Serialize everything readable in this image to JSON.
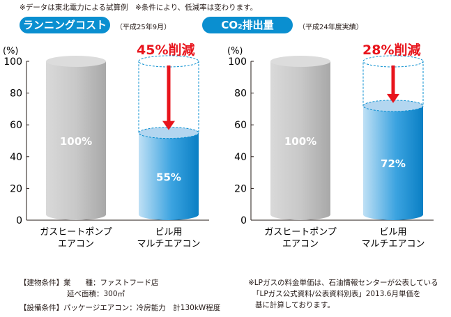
{
  "notes": {
    "top": "※データは東北電力による試算例　※条件により、低減率は変わります。"
  },
  "chart_data": [
    {
      "type": "bar",
      "title": "ランニングコスト",
      "period": "（平成25年9月）",
      "ylabel": "(%)",
      "ylim": [
        0,
        100
      ],
      "yticks": [
        0,
        20,
        40,
        60,
        80,
        100
      ],
      "categories": [
        "ガスヒートポンプ\nエアコン",
        "ビル用\nマルチエアコン"
      ],
      "category_lines": [
        [
          "ガスヒートポンプ",
          "エアコン"
        ],
        [
          "ビル用",
          "マルチエアコン"
        ]
      ],
      "values": [
        100,
        55
      ],
      "value_labels": [
        "100%",
        "55%"
      ],
      "reduction": "45%削減"
    },
    {
      "type": "bar",
      "title": "CO₂排出量",
      "period": "（平成24年度実績）",
      "ylabel": "(%)",
      "ylim": [
        0,
        100
      ],
      "yticks": [
        0,
        20,
        40,
        60,
        80,
        100
      ],
      "categories": [
        "ガスヒートポンプ\nエアコン",
        "ビル用\nマルチエアコン"
      ],
      "category_lines": [
        [
          "ガスヒートポンプ",
          "エアコン"
        ],
        [
          "ビル用",
          "マルチエアコン"
        ]
      ],
      "values": [
        100,
        72
      ],
      "value_labels": [
        "100%",
        "72%"
      ],
      "reduction": "28%削減"
    }
  ],
  "footer": {
    "building1": "【建物条件】業　　種：ファストフード店",
    "building2": "延べ面積：300㎡",
    "equipment": "【設備条件】パッケージエアコン：冷房能力　計130kW程度",
    "lp1": "※LPガスの料金単価は、石油情報センターが公表している",
    "lp2": "「LPガス公式資料/公表資料別表」2013.6月単価を",
    "lp3": "基に計算しております。"
  },
  "colors": {
    "accent": "#0a8fd0",
    "red": "#e8141c",
    "gray": "#bfbfbf"
  }
}
